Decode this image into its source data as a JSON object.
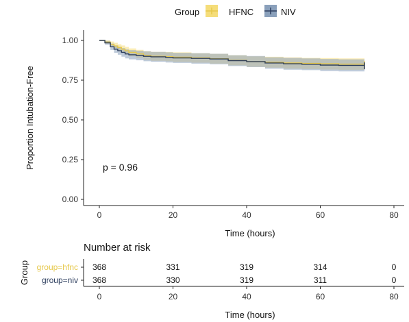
{
  "chart_data": [
    {
      "type": "line",
      "subtype": "kaplan-meier",
      "title": "",
      "xlabel": "Time (hours)",
      "ylabel": "Proportion Intubation-Free",
      "xlim": [
        0,
        80
      ],
      "ylim": [
        0,
        1
      ],
      "xticks": [
        "0",
        "20",
        "40",
        "60",
        "80"
      ],
      "yticks": [
        "0.00",
        "0.25",
        "0.50",
        "0.75",
        "1.00"
      ],
      "grid": false,
      "annotation": "p = 0.96",
      "legend": {
        "title": "Group",
        "position": "top",
        "entries": [
          "HFNC",
          "NIV"
        ]
      },
      "series": [
        {
          "name": "HFNC",
          "color": "#e6c84a",
          "band_color": "#f5dd7a",
          "x": [
            0,
            1.5,
            3,
            4,
            5,
            6,
            7,
            8,
            10,
            12,
            14,
            18,
            20,
            25,
            30,
            35,
            40,
            45,
            50,
            55,
            60,
            65,
            72
          ],
          "y": [
            1.0,
            0.99,
            0.975,
            0.965,
            0.955,
            0.945,
            0.935,
            0.925,
            0.915,
            0.905,
            0.9,
            0.898,
            0.895,
            0.89,
            0.885,
            0.875,
            0.867,
            0.863,
            0.858,
            0.855,
            0.853,
            0.851,
            0.848
          ],
          "lower": [
            1.0,
            0.98,
            0.957,
            0.945,
            0.934,
            0.922,
            0.911,
            0.9,
            0.889,
            0.878,
            0.872,
            0.869,
            0.865,
            0.86,
            0.854,
            0.843,
            0.834,
            0.829,
            0.823,
            0.82,
            0.817,
            0.815,
            0.811
          ],
          "upper": [
            1.0,
            1.0,
            0.993,
            0.985,
            0.976,
            0.968,
            0.959,
            0.95,
            0.941,
            0.932,
            0.928,
            0.927,
            0.925,
            0.92,
            0.916,
            0.907,
            0.9,
            0.897,
            0.893,
            0.89,
            0.889,
            0.887,
            0.885
          ]
        },
        {
          "name": "NIV",
          "color": "#2d3e5e",
          "band_color": "#8aa0bb",
          "x": [
            0,
            1.5,
            3,
            4,
            5,
            6,
            7,
            8,
            10,
            12,
            14,
            18,
            20,
            25,
            30,
            35,
            40,
            45,
            50,
            55,
            60,
            65,
            72
          ],
          "y": [
            1.0,
            0.985,
            0.96,
            0.945,
            0.935,
            0.925,
            0.915,
            0.91,
            0.905,
            0.9,
            0.897,
            0.893,
            0.89,
            0.887,
            0.883,
            0.873,
            0.867,
            0.858,
            0.853,
            0.85,
            0.845,
            0.843,
            0.84
          ],
          "lower": [
            1.0,
            0.973,
            0.94,
            0.922,
            0.91,
            0.898,
            0.887,
            0.881,
            0.875,
            0.869,
            0.866,
            0.861,
            0.858,
            0.854,
            0.85,
            0.839,
            0.832,
            0.822,
            0.816,
            0.813,
            0.807,
            0.805,
            0.801
          ],
          "upper": [
            1.0,
            0.997,
            0.98,
            0.968,
            0.96,
            0.952,
            0.943,
            0.939,
            0.935,
            0.931,
            0.928,
            0.925,
            0.922,
            0.92,
            0.916,
            0.907,
            0.902,
            0.894,
            0.89,
            0.887,
            0.883,
            0.881,
            0.879
          ]
        }
      ]
    },
    {
      "type": "table",
      "title": "Number at risk",
      "xlabel": "Time (hours)",
      "ylabel": "Group",
      "xlim": [
        0,
        80
      ],
      "columns": [
        0,
        20,
        40,
        60,
        80
      ],
      "xticks": [
        "0",
        "20",
        "40",
        "60",
        "80"
      ],
      "rows": [
        {
          "label": "group=hfnc",
          "color": "#e6c84a",
          "values": [
            "368",
            "331",
            "319",
            "314",
            "0"
          ]
        },
        {
          "label": "group=niv",
          "color": "#2d3e5e",
          "values": [
            "368",
            "330",
            "319",
            "311",
            "0"
          ]
        }
      ]
    }
  ]
}
